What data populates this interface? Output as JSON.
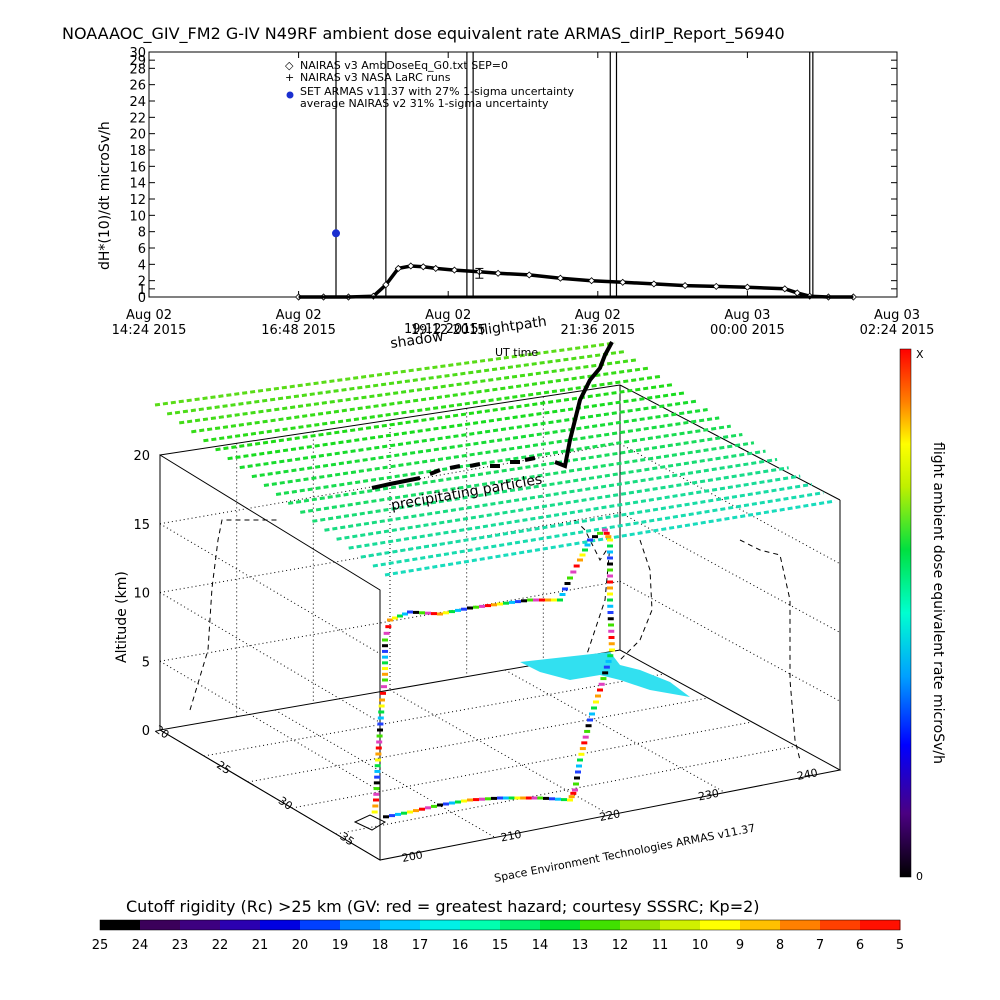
{
  "figure": {
    "title": "NOAAAOC_GIV_FM2 G-IV   N49RF  ambient dose equivalent rate ARMAS_dirIP_Report_56940",
    "credit": "Space Environment Technologies ARMAS v11.37",
    "shadow_label": "shadow",
    "flightpath_label": "flightpath",
    "precip_label": "precipitating particles",
    "ut_label": "UT time",
    "overlap_label": "19:12 2015"
  },
  "chart_data": [
    {
      "type": "line",
      "ylabel": "dH*(10)/dt microSv/h",
      "ylim": [
        0,
        30
      ],
      "yticks": [
        0,
        1,
        2,
        4,
        6,
        8,
        10,
        12,
        14,
        16,
        18,
        20,
        22,
        24,
        26,
        28,
        29,
        30
      ],
      "xtick_labels": [
        {
          "day": "Aug 02",
          "time": "14:24 2015"
        },
        {
          "day": "Aug 02",
          "time": "16:48 2015"
        },
        {
          "day": "Aug 02",
          "time": "19:12 2015"
        },
        {
          "day": "Aug 02",
          "time": "21:36 2015"
        },
        {
          "day": "Aug 03",
          "time": "00:00 2015"
        },
        {
          "day": "Aug 03",
          "time": "02:24 2015"
        }
      ],
      "legend": [
        {
          "symbol": "◇",
          "label": "NAIRAS v3 AmbDoseEq_G0.txt SEP=0"
        },
        {
          "symbol": "+",
          "label": "NAIRAS v3 NASA LaRC runs"
        },
        {
          "symbol": "●",
          "label": "SET ARMAS v11.37 with 27% 1-sigma uncertainty"
        },
        {
          "symbol": "",
          "label": "average NAIRAS v2 31% 1-sigma uncertainty"
        }
      ],
      "series": [
        {
          "name": "NAIRAS v3 AmbDoseEq_G0.txt SEP=0",
          "x_hours": [
            16.8,
            17.2,
            17.6,
            18.0,
            18.2,
            18.4,
            18.6,
            18.8,
            19.0,
            19.3,
            19.7,
            20.0,
            20.5,
            21.0,
            21.5,
            22.0,
            22.5,
            23.0,
            23.5,
            24.0,
            24.6,
            24.8,
            25.0,
            25.3,
            25.7
          ],
          "values": [
            0,
            0,
            0,
            0.1,
            1.5,
            3.5,
            3.8,
            3.7,
            3.5,
            3.3,
            3.1,
            2.9,
            2.7,
            2.3,
            2.0,
            1.8,
            1.6,
            1.4,
            1.3,
            1.2,
            1.0,
            0.5,
            0.1,
            0,
            0
          ]
        },
        {
          "name": "SET ARMAS v11.37 with 27% 1-sigma uncertainty",
          "x_hours": [
            17.4
          ],
          "values": [
            7.8
          ]
        }
      ],
      "errorbars": [
        {
          "x_hours": 19.7,
          "value": 2.9,
          "low": 2.3,
          "high": 3.5
        }
      ],
      "spikes_x_hours": [
        17.4,
        18.2,
        19.5,
        19.6,
        21.8,
        21.9,
        25.0,
        25.05
      ]
    },
    {
      "type": "scatter",
      "zlabel": "Altitude (km)",
      "zticks": [
        "0",
        "5",
        "10",
        "15",
        "20"
      ],
      "lat_ticks": [
        "20",
        "25",
        "30",
        "35"
      ],
      "lon_ticks": [
        "200",
        "210",
        "220",
        "230",
        "240"
      ],
      "colorbar": {
        "label": "flight ambient dose equivalent rate microSv/h",
        "top": "X",
        "bottom": "0"
      }
    },
    {
      "type": "heatmap",
      "label": "Cutoff rigidity (Rc) >25 km (GV: red = greatest hazard; courtesy SSSRC; Kp=2)",
      "ticks": [
        "25",
        "24",
        "23",
        "22",
        "21",
        "20",
        "19",
        "18",
        "17",
        "16",
        "15",
        "14",
        "13",
        "12",
        "11",
        "10",
        "9",
        "8",
        "7",
        "6",
        "5"
      ],
      "colors": [
        "#000000",
        "#3b005a",
        "#3d0080",
        "#2b00b0",
        "#0000e0",
        "#0040ff",
        "#0090ff",
        "#00c8ff",
        "#00f0e8",
        "#00ffb0",
        "#00f070",
        "#00e030",
        "#40e000",
        "#90e000",
        "#d0f000",
        "#ffff00",
        "#ffc000",
        "#ff8000",
        "#ff4000",
        "#ff1000",
        "#ff0000"
      ]
    }
  ]
}
